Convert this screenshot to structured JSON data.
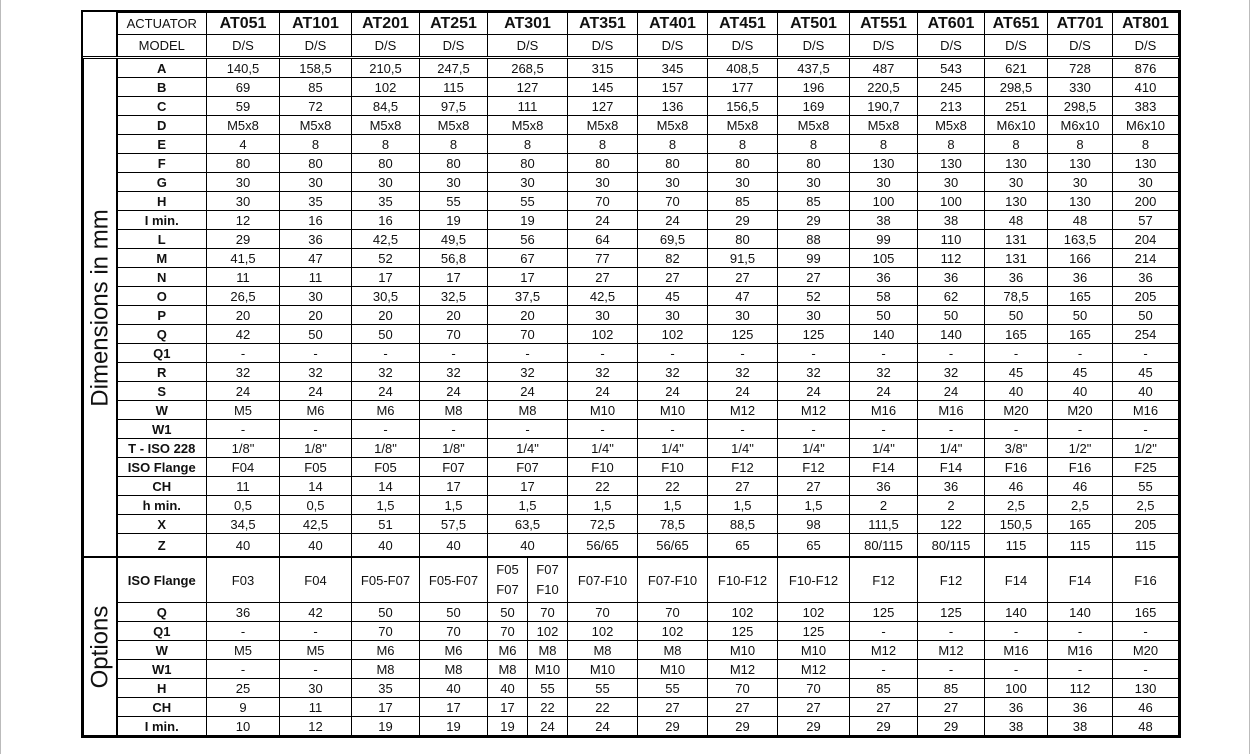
{
  "header": {
    "actuator_label": "ACTUATOR",
    "model_label": "MODEL",
    "actuators": [
      "AT051",
      "AT101",
      "AT201",
      "AT251",
      "AT301",
      "AT351",
      "AT401",
      "AT451",
      "AT501",
      "AT551",
      "AT601",
      "AT651",
      "AT701",
      "AT801"
    ],
    "models": [
      "D/S",
      "D/S",
      "D/S",
      "D/S",
      "D/S",
      "D/S",
      "D/S",
      "D/S",
      "D/S",
      "D/S",
      "D/S",
      "D/S",
      "D/S",
      "D/S"
    ]
  },
  "dimensions": {
    "title": "Dimensions in mm",
    "rows": [
      {
        "label": "A",
        "values": [
          "140,5",
          "158,5",
          "210,5",
          "247,5",
          "268,5",
          "315",
          "345",
          "408,5",
          "437,5",
          "487",
          "543",
          "621",
          "728",
          "876"
        ]
      },
      {
        "label": "B",
        "values": [
          "69",
          "85",
          "102",
          "115",
          "127",
          "145",
          "157",
          "177",
          "196",
          "220,5",
          "245",
          "298,5",
          "330",
          "410"
        ]
      },
      {
        "label": "C",
        "values": [
          "59",
          "72",
          "84,5",
          "97,5",
          "111",
          "127",
          "136",
          "156,5",
          "169",
          "190,7",
          "213",
          "251",
          "298,5",
          "383"
        ]
      },
      {
        "label": "D",
        "values": [
          "M5x8",
          "M5x8",
          "M5x8",
          "M5x8",
          "M5x8",
          "M5x8",
          "M5x8",
          "M5x8",
          "M5x8",
          "M5x8",
          "M5x8",
          "M6x10",
          "M6x10",
          "M6x10"
        ]
      },
      {
        "label": "E",
        "values": [
          "4",
          "8",
          "8",
          "8",
          "8",
          "8",
          "8",
          "8",
          "8",
          "8",
          "8",
          "8",
          "8",
          "8"
        ]
      },
      {
        "label": "F",
        "values": [
          "80",
          "80",
          "80",
          "80",
          "80",
          "80",
          "80",
          "80",
          "80",
          "130",
          "130",
          "130",
          "130",
          "130"
        ]
      },
      {
        "label": "G",
        "values": [
          "30",
          "30",
          "30",
          "30",
          "30",
          "30",
          "30",
          "30",
          "30",
          "30",
          "30",
          "30",
          "30",
          "30"
        ]
      },
      {
        "label": "H",
        "values": [
          "30",
          "35",
          "35",
          "55",
          "55",
          "70",
          "70",
          "85",
          "85",
          "100",
          "100",
          "130",
          "130",
          "200"
        ]
      },
      {
        "label": "I min.",
        "values": [
          "12",
          "16",
          "16",
          "19",
          "19",
          "24",
          "24",
          "29",
          "29",
          "38",
          "38",
          "48",
          "48",
          "57"
        ]
      },
      {
        "label": "L",
        "values": [
          "29",
          "36",
          "42,5",
          "49,5",
          "56",
          "64",
          "69,5",
          "80",
          "88",
          "99",
          "110",
          "131",
          "163,5",
          "204"
        ]
      },
      {
        "label": "M",
        "values": [
          "41,5",
          "47",
          "52",
          "56,8",
          "67",
          "77",
          "82",
          "91,5",
          "99",
          "105",
          "112",
          "131",
          "166",
          "214"
        ]
      },
      {
        "label": "N",
        "values": [
          "11",
          "11",
          "17",
          "17",
          "17",
          "27",
          "27",
          "27",
          "27",
          "36",
          "36",
          "36",
          "36",
          "36"
        ]
      },
      {
        "label": "O",
        "values": [
          "26,5",
          "30",
          "30,5",
          "32,5",
          "37,5",
          "42,5",
          "45",
          "47",
          "52",
          "58",
          "62",
          "78,5",
          "165",
          "205"
        ]
      },
      {
        "label": "P",
        "values": [
          "20",
          "20",
          "20",
          "20",
          "20",
          "30",
          "30",
          "30",
          "30",
          "50",
          "50",
          "50",
          "50",
          "50"
        ]
      },
      {
        "label": "Q",
        "values": [
          "42",
          "50",
          "50",
          "70",
          "70",
          "102",
          "102",
          "125",
          "125",
          "140",
          "140",
          "165",
          "165",
          "254"
        ]
      },
      {
        "label": "Q1",
        "values": [
          "-",
          "-",
          "-",
          "-",
          "-",
          "-",
          "-",
          "-",
          "-",
          "-",
          "-",
          "-",
          "-",
          "-"
        ]
      },
      {
        "label": "R",
        "values": [
          "32",
          "32",
          "32",
          "32",
          "32",
          "32",
          "32",
          "32",
          "32",
          "32",
          "32",
          "45",
          "45",
          "45"
        ]
      },
      {
        "label": "S",
        "values": [
          "24",
          "24",
          "24",
          "24",
          "24",
          "24",
          "24",
          "24",
          "24",
          "24",
          "24",
          "40",
          "40",
          "40"
        ]
      },
      {
        "label": "W",
        "values": [
          "M5",
          "M6",
          "M6",
          "M8",
          "M8",
          "M10",
          "M10",
          "M12",
          "M12",
          "M16",
          "M16",
          "M20",
          "M20",
          "M16"
        ]
      },
      {
        "label": "W1",
        "values": [
          "-",
          "-",
          "-",
          "-",
          "-",
          "-",
          "-",
          "-",
          "-",
          "-",
          "-",
          "-",
          "-",
          "-"
        ]
      },
      {
        "label": "T - ISO 228",
        "values": [
          "1/8\"",
          "1/8\"",
          "1/8\"",
          "1/8\"",
          "1/4\"",
          "1/4\"",
          "1/4\"",
          "1/4\"",
          "1/4\"",
          "1/4\"",
          "1/4\"",
          "3/8\"",
          "1/2\"",
          "1/2\""
        ]
      },
      {
        "label": "ISO Flange",
        "values": [
          "F04",
          "F05",
          "F05",
          "F07",
          "F07",
          "F10",
          "F10",
          "F12",
          "F12",
          "F14",
          "F14",
          "F16",
          "F16",
          "F25"
        ]
      },
      {
        "label": "CH",
        "values": [
          "11",
          "14",
          "14",
          "17",
          "17",
          "22",
          "22",
          "27",
          "27",
          "36",
          "36",
          "46",
          "46",
          "55"
        ]
      },
      {
        "label": "h min.",
        "values": [
          "0,5",
          "0,5",
          "1,5",
          "1,5",
          "1,5",
          "1,5",
          "1,5",
          "1,5",
          "1,5",
          "2",
          "2",
          "2,5",
          "2,5",
          "2,5"
        ]
      },
      {
        "label": "X",
        "values": [
          "34,5",
          "42,5",
          "51",
          "57,5",
          "63,5",
          "72,5",
          "78,5",
          "88,5",
          "98",
          "111,5",
          "122",
          "150,5",
          "165",
          "205"
        ]
      },
      {
        "label": "Z",
        "values": [
          "40",
          "40",
          "40",
          "40",
          "40",
          "56/65",
          "56/65",
          "65",
          "65",
          "80/115",
          "80/115",
          "115",
          "115",
          "115"
        ]
      }
    ]
  },
  "options": {
    "title": "Options",
    "rows": [
      {
        "label": "ISO Flange",
        "values": [
          "F03",
          "F04",
          "F05-F07",
          "F05-F07",
          [
            "F05 F07",
            "F07 F10"
          ],
          "F07-F10",
          "F07-F10",
          "F10-F12",
          "F10-F12",
          "F12",
          "F12",
          "F14",
          "F14",
          "F16"
        ]
      },
      {
        "label": "Q",
        "values": [
          "36",
          "42",
          "50",
          "50",
          [
            "50",
            "70"
          ],
          "70",
          "70",
          "102",
          "102",
          "125",
          "125",
          "140",
          "140",
          "165"
        ]
      },
      {
        "label": "Q1",
        "values": [
          "-",
          "-",
          "70",
          "70",
          [
            "70",
            "102"
          ],
          "102",
          "102",
          "125",
          "125",
          "-",
          "-",
          "-",
          "-",
          "-"
        ]
      },
      {
        "label": "W",
        "values": [
          "M5",
          "M5",
          "M6",
          "M6",
          [
            "M6",
            "M8"
          ],
          "M8",
          "M8",
          "M10",
          "M10",
          "M12",
          "M12",
          "M16",
          "M16",
          "M20"
        ]
      },
      {
        "label": "W1",
        "values": [
          "-",
          "-",
          "M8",
          "M8",
          [
            "M8",
            "M10"
          ],
          "M10",
          "M10",
          "M12",
          "M12",
          "-",
          "-",
          "-",
          "-",
          "-"
        ]
      },
      {
        "label": "H",
        "values": [
          "25",
          "30",
          "35",
          "40",
          [
            "40",
            "55"
          ],
          "55",
          "55",
          "70",
          "70",
          "85",
          "85",
          "100",
          "112",
          "130"
        ]
      },
      {
        "label": "CH",
        "values": [
          "9",
          "11",
          "17",
          "17",
          [
            "17",
            "22"
          ],
          "22",
          "27",
          "27",
          "27",
          "27",
          "27",
          "36",
          "36",
          "46"
        ]
      },
      {
        "label": "I min.",
        "values": [
          "10",
          "12",
          "19",
          "19",
          [
            "19",
            "24"
          ],
          "24",
          "29",
          "29",
          "29",
          "29",
          "29",
          "38",
          "38",
          "48"
        ]
      }
    ]
  }
}
